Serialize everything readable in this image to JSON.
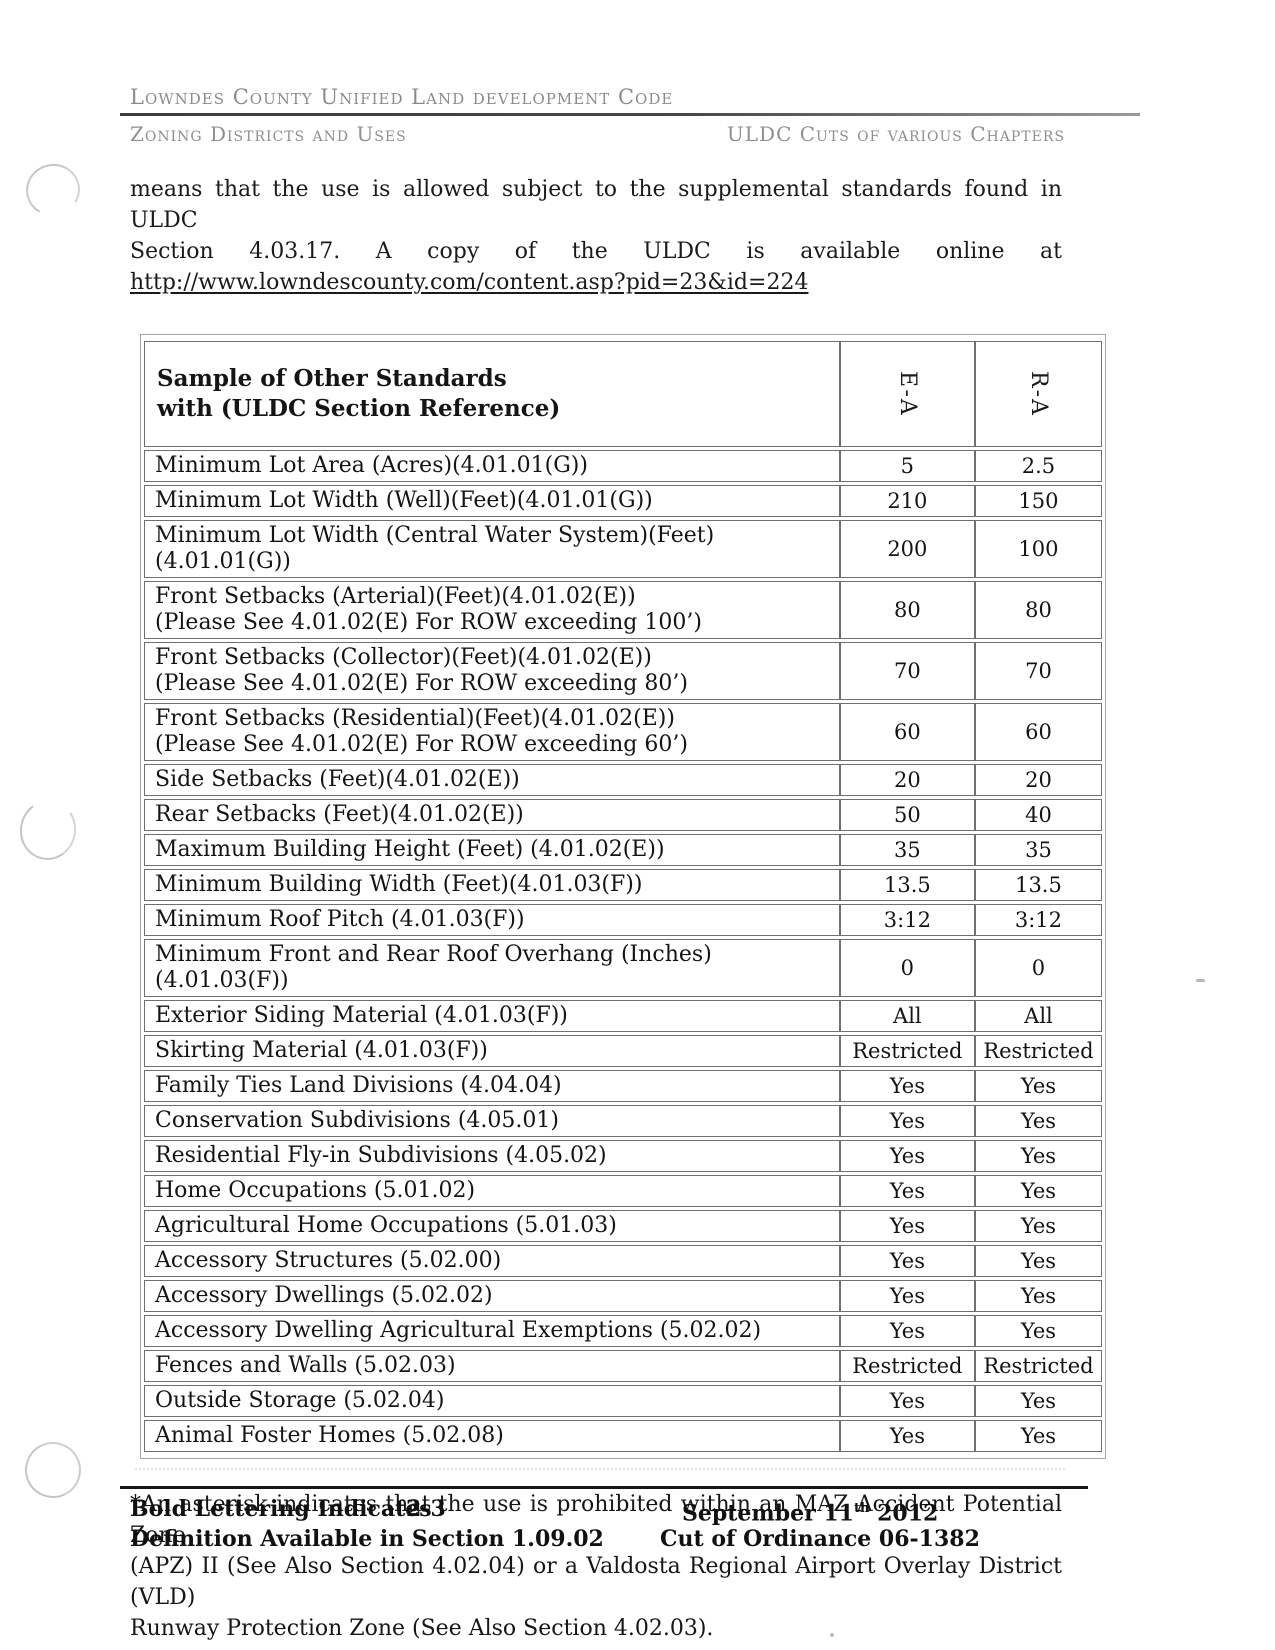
{
  "header": {
    "title": "Lowndes County Unified Land development Code",
    "section_left": "Zoning Districts and Uses",
    "section_right": "ULDC Cuts of  various Chapters"
  },
  "intro": {
    "line1": "means that the use is allowed subject to the supplemental standards found in ULDC",
    "line2": "Section 4.03.17. A copy of the ULDC is available online at",
    "url": "http://www.lowndescounty.com/content.asp?pid=23&id=224"
  },
  "table": {
    "header": {
      "label_line1": "Sample of Other Standards",
      "label_line2": "with (ULDC Section Reference)",
      "col1": "E-A",
      "col2": "R-A"
    },
    "rows": [
      {
        "label": "Minimum Lot Area (Acres)(4.01.01(G))",
        "ea": "5",
        "ra": "2.5"
      },
      {
        "label": "Minimum Lot Width (Well)(Feet)(4.01.01(G))",
        "ea": "210",
        "ra": "150"
      },
      {
        "label": "Minimum Lot Width (Central Water System)(Feet)(4.01.01(G))",
        "ea": "200",
        "ra": "100"
      },
      {
        "label": "Front Setbacks (Arterial)(Feet)(4.01.02(E))",
        "note": "(Please See 4.01.02(E) For ROW exceeding 100’)",
        "ea": "80",
        "ra": "80"
      },
      {
        "label": "Front Setbacks (Collector)(Feet)(4.01.02(E))",
        "note": "(Please See 4.01.02(E) For ROW exceeding 80’)",
        "ea": "70",
        "ra": "70"
      },
      {
        "label": "Front Setbacks (Residential)(Feet)(4.01.02(E))",
        "note": "(Please See 4.01.02(E) For ROW exceeding 60’)",
        "ea": "60",
        "ra": "60"
      },
      {
        "label": "Side Setbacks (Feet)(4.01.02(E))",
        "ea": "20",
        "ra": "20"
      },
      {
        "label": "Rear Setbacks (Feet)(4.01.02(E))",
        "ea": "50",
        "ra": "40"
      },
      {
        "label": "Maximum Building Height (Feet) (4.01.02(E))",
        "ea": "35",
        "ra": "35"
      },
      {
        "label": "Minimum Building Width (Feet)(4.01.03(F))",
        "ea": "13.5",
        "ra": "13.5"
      },
      {
        "label": "Minimum Roof Pitch (4.01.03(F))",
        "ea": "3:12",
        "ra": "3:12"
      },
      {
        "label": "Minimum Front and Rear Roof Overhang (Inches)(4.01.03(F))",
        "ea": "0",
        "ra": "0"
      },
      {
        "label": "Exterior Siding Material (4.01.03(F))",
        "ea": "All",
        "ra": "All"
      },
      {
        "label": "Skirting Material (4.01.03(F))",
        "ea": "Restricted",
        "ra": "Restricted"
      },
      {
        "label": "Family Ties Land Divisions (4.04.04)",
        "ea": "Yes",
        "ra": "Yes"
      },
      {
        "label": "Conservation Subdivisions (4.05.01)",
        "ea": "Yes",
        "ra": "Yes"
      },
      {
        "label": "Residential Fly-in Subdivisions (4.05.02)",
        "ea": "Yes",
        "ra": "Yes"
      },
      {
        "label": "Home Occupations (5.01.02)",
        "ea": "Yes",
        "ra": "Yes"
      },
      {
        "label": "Agricultural Home Occupations (5.01.03)",
        "ea": "Yes",
        "ra": "Yes"
      },
      {
        "label": "Accessory Structures (5.02.00)",
        "ea": "Yes",
        "ra": "Yes"
      },
      {
        "label": "Accessory Dwellings (5.02.02)",
        "ea": "Yes",
        "ra": "Yes"
      },
      {
        "label": "Accessory Dwelling Agricultural Exemptions (5.02.02)",
        "ea": "Yes",
        "ra": "Yes"
      },
      {
        "label": "Fences and Walls (5.02.03)",
        "ea": "Restricted",
        "ra": "Restricted"
      },
      {
        "label": "Outside Storage (5.02.04)",
        "ea": "Yes",
        "ra": "Yes"
      },
      {
        "label": "Animal Foster Homes (5.02.08)",
        "ea": "Yes",
        "ra": "Yes"
      }
    ]
  },
  "footnote": {
    "line1": "*An asterisk indicates that the use is prohibited within an MAZ Accident Potential Zone",
    "line2": "(APZ) II (See Also Section 4.02.04) or a Valdosta Regional Airport Overlay District (VLD)",
    "line3": "Runway Protection Zone (See Also Section 4.02.03)."
  },
  "footer": {
    "left_line1": "Bold Lettering Indicates",
    "page_number": "2-3",
    "date_main": "September 11",
    "date_suffix": "th",
    "date_year": " 2012",
    "left_line2": "Definition Available in Section 1.09.02",
    "right_line2": "Cut of Ordinance 06-1382"
  }
}
